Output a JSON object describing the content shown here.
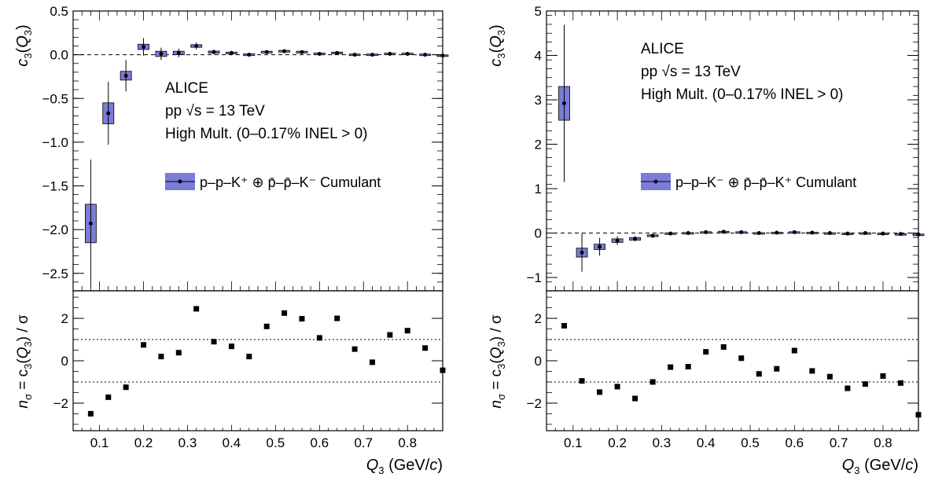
{
  "figure": {
    "legend_color": "#7b7bd9",
    "marker_color": "#000000"
  },
  "chart_data": [
    {
      "type": "scatter",
      "panel": "left",
      "title": "",
      "xlabel": "",
      "ylabel": "c3(Q3)",
      "ylim": [
        -2.7,
        0.5
      ],
      "xlim": [
        0.04,
        0.88
      ],
      "grid": false,
      "legend_position": "middle-right",
      "annotation_lines": [
        "ALICE",
        "pp  √s = 13 TeV",
        "High Mult. (0–0.17% INEL > 0)"
      ],
      "legend_label": "p–p–K⁺ ⊕ p̄–p̄–K⁻ Cumulant",
      "x": [
        0.08,
        0.12,
        0.16,
        0.2,
        0.24,
        0.28,
        0.32,
        0.36,
        0.4,
        0.44,
        0.48,
        0.52,
        0.56,
        0.6,
        0.64,
        0.68,
        0.72,
        0.76,
        0.8,
        0.84,
        0.88
      ],
      "y": [
        -1.93,
        -0.67,
        -0.24,
        0.09,
        0.01,
        0.02,
        0.1,
        0.03,
        0.02,
        0.0,
        0.03,
        0.04,
        0.03,
        0.01,
        0.02,
        0.0,
        0.0,
        0.01,
        0.01,
        0.0,
        -0.01
      ],
      "stat_err": [
        0.73,
        0.36,
        0.18,
        0.1,
        0.07,
        0.05,
        0.04,
        0.03,
        0.025,
        0.02,
        0.02,
        0.02,
        0.015,
        0.015,
        0.015,
        0.012,
        0.012,
        0.01,
        0.01,
        0.01,
        0.01
      ],
      "syst_err": [
        0.22,
        0.12,
        0.05,
        0.03,
        0.03,
        0.02,
        0.015,
        0.012,
        0.01,
        0.01,
        0.01,
        0.01,
        0.01,
        0.01,
        0.01,
        0.008,
        0.008,
        0.008,
        0.008,
        0.008,
        0.008
      ],
      "yticks": [
        -2.5,
        -2.0,
        -1.5,
        -1.0,
        -0.5,
        0.0,
        0.5
      ],
      "ytick_labels": [
        "−2.5",
        "−2.0",
        "−1.5",
        "−1.0",
        "−0.5",
        "0.0",
        "0.5"
      ],
      "residual": {
        "ylabel": "nσ = c3(Q3) / σ",
        "xlabel": "Q3 (GeV/c)",
        "ylim": [
          -3.3,
          3.3
        ],
        "yticks": [
          -2,
          0,
          2
        ],
        "ytick_labels": [
          "−2",
          "0",
          "2"
        ],
        "reference_lines": [
          -1,
          1
        ],
        "xticks": [
          0.1,
          0.2,
          0.3,
          0.4,
          0.5,
          0.6,
          0.7,
          0.8
        ],
        "xtick_labels": [
          "0.1",
          "0.2",
          "0.3",
          "0.4",
          "0.5",
          "0.6",
          "0.7",
          "0.8"
        ],
        "x": [
          0.08,
          0.12,
          0.16,
          0.2,
          0.24,
          0.28,
          0.32,
          0.36,
          0.4,
          0.44,
          0.48,
          0.52,
          0.56,
          0.6,
          0.64,
          0.68,
          0.72,
          0.76,
          0.8,
          0.84,
          0.88
        ],
        "y": [
          -2.5,
          -1.72,
          -1.25,
          0.75,
          0.2,
          0.38,
          2.45,
          0.9,
          0.68,
          0.2,
          1.62,
          2.25,
          1.98,
          1.08,
          2.0,
          0.55,
          -0.07,
          1.22,
          1.42,
          0.6,
          -0.45
        ]
      }
    },
    {
      "type": "scatter",
      "panel": "right",
      "title": "",
      "xlabel": "",
      "ylabel": "c3(Q3)",
      "ylim": [
        -1.3,
        5.0
      ],
      "xlim": [
        0.04,
        0.88
      ],
      "grid": false,
      "legend_position": "middle-right",
      "annotation_lines": [
        "ALICE",
        "pp  √s = 13 TeV",
        "High Mult. (0–0.17% INEL > 0)"
      ],
      "legend_label": "p–p–K⁻ ⊕ p̄–p̄–K⁺ Cumulant",
      "x": [
        0.08,
        0.12,
        0.16,
        0.2,
        0.24,
        0.28,
        0.32,
        0.36,
        0.4,
        0.44,
        0.48,
        0.52,
        0.56,
        0.6,
        0.64,
        0.68,
        0.72,
        0.76,
        0.8,
        0.84,
        0.88
      ],
      "y": [
        2.92,
        -0.44,
        -0.31,
        -0.17,
        -0.13,
        -0.06,
        -0.01,
        0.0,
        0.02,
        0.03,
        0.02,
        0.0,
        0.01,
        0.02,
        0.01,
        0.0,
        -0.01,
        0.0,
        -0.01,
        -0.02,
        -0.03
      ],
      "stat_err": [
        1.77,
        0.43,
        0.2,
        0.1,
        0.06,
        0.04,
        0.03,
        0.03,
        0.025,
        0.02,
        0.02,
        0.02,
        0.015,
        0.015,
        0.015,
        0.012,
        0.012,
        0.01,
        0.01,
        0.01,
        0.01
      ],
      "syst_err": [
        0.38,
        0.1,
        0.06,
        0.04,
        0.03,
        0.02,
        0.015,
        0.012,
        0.01,
        0.01,
        0.01,
        0.01,
        0.01,
        0.01,
        0.01,
        0.008,
        0.008,
        0.008,
        0.008,
        0.008,
        0.008
      ],
      "yticks": [
        -1,
        0,
        1,
        2,
        3,
        4,
        5
      ],
      "ytick_labels": [
        "−1",
        "0",
        "1",
        "2",
        "3",
        "4",
        "5"
      ],
      "residual": {
        "ylabel": "nσ = c3(Q3) / σ",
        "xlabel": "Q3 (GeV/c)",
        "ylim": [
          -3.3,
          3.3
        ],
        "yticks": [
          -2,
          0,
          2
        ],
        "ytick_labels": [
          "−2",
          "0",
          "2"
        ],
        "reference_lines": [
          -1,
          1
        ],
        "xticks": [
          0.1,
          0.2,
          0.3,
          0.4,
          0.5,
          0.6,
          0.7,
          0.8
        ],
        "xtick_labels": [
          "0.1",
          "0.2",
          "0.3",
          "0.4",
          "0.5",
          "0.6",
          "0.7",
          "0.8"
        ],
        "x": [
          0.08,
          0.12,
          0.16,
          0.2,
          0.24,
          0.28,
          0.32,
          0.36,
          0.4,
          0.44,
          0.48,
          0.52,
          0.56,
          0.6,
          0.64,
          0.68,
          0.72,
          0.76,
          0.8,
          0.84,
          0.88
        ],
        "y": [
          1.65,
          -0.95,
          -1.48,
          -1.22,
          -1.78,
          -1.0,
          -0.3,
          -0.28,
          0.42,
          0.65,
          0.12,
          -0.62,
          -0.38,
          0.48,
          -0.48,
          -0.75,
          -1.3,
          -1.1,
          -0.72,
          -1.05,
          -2.55
        ]
      }
    }
  ]
}
